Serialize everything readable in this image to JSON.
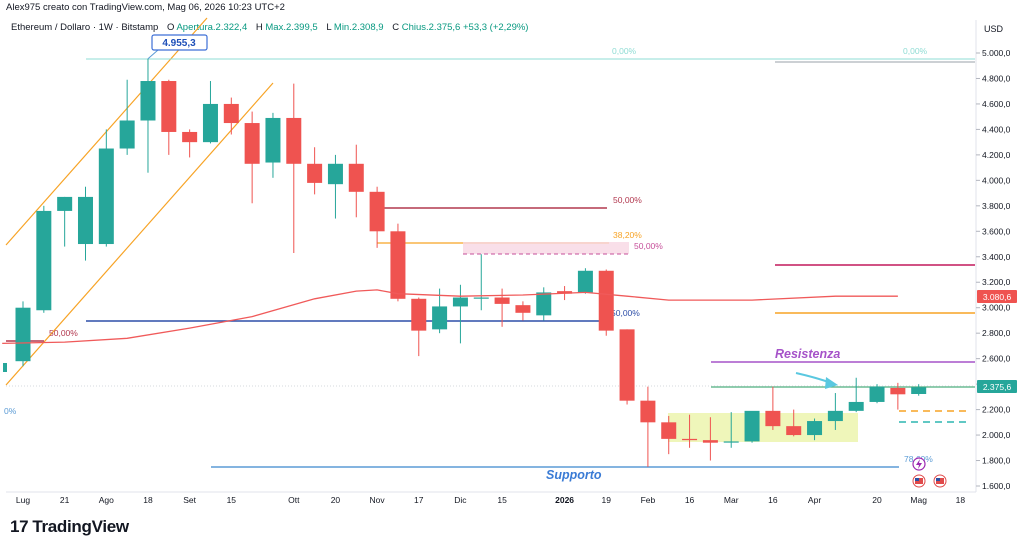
{
  "header": {
    "author_line": "Alex975 creato con TradingView.com, Mag 06, 2026 10:23 UTC+2",
    "symbol": "Ethereum / Dollaro · 1W · Bitstamp",
    "ohlc": {
      "open_label": "O",
      "open": "Apertura.2.322,4",
      "high_label": "H",
      "high": "Max.2.399,5",
      "low_label": "L",
      "low": "Min.2.308,9",
      "close_label": "C",
      "close": "Chius.2.375,6",
      "change": "+53,3 (+2,29%)"
    }
  },
  "brand": {
    "logo_text": "TradingView",
    "logo_mark": "17"
  },
  "colors": {
    "up": "#26a69a",
    "down": "#ef5350",
    "ma": "#f05a5a",
    "orange": "#f7a325",
    "purple": "#a653c9",
    "blue_line": "#2d4ea8",
    "support": "#5b9bd5",
    "green_line": "#4caf7d",
    "crimson": "#c2185b"
  },
  "chart_data": {
    "type": "candlestick",
    "symbol": "Ethereum / Dollaro",
    "timeframe": "1W",
    "currency": "USD",
    "y_ticks": [
      "5.000,0",
      "4.800,0",
      "4.600,0",
      "4.400,0",
      "4.200,0",
      "4.000,0",
      "3.800,0",
      "3.600,0",
      "3.400,0",
      "3.200,0",
      "3.000,0",
      "2.800,0",
      "2.600,0",
      "2.400,0",
      "2.200,0",
      "2.000,0",
      "1.800,0",
      "1.600,0"
    ],
    "ylim": [
      1550,
      5220
    ],
    "x_ticks": [
      "Lug",
      "21",
      "Ago",
      "18",
      "Set",
      "15",
      "Ott",
      "20",
      "Nov",
      "17",
      "Dic",
      "15",
      "2026",
      "19",
      "Feb",
      "16",
      "Mar",
      "16",
      "Apr",
      "20",
      "Mag",
      "18"
    ],
    "candles": [
      {
        "o": 2580,
        "h": 3050,
        "l": 2540,
        "c": 3000
      },
      {
        "o": 2980,
        "h": 3800,
        "l": 2960,
        "c": 3760
      },
      {
        "o": 3760,
        "h": 3870,
        "l": 3480,
        "c": 3870
      },
      {
        "o": 3500,
        "h": 3950,
        "l": 3370,
        "c": 3870
      },
      {
        "o": 3500,
        "h": 4400,
        "l": 3480,
        "c": 4250
      },
      {
        "o": 4250,
        "h": 4790,
        "l": 4200,
        "c": 4470
      },
      {
        "o": 4470,
        "h": 4955,
        "l": 4060,
        "c": 4780
      },
      {
        "o": 4780,
        "h": 4790,
        "l": 4200,
        "c": 4380
      },
      {
        "o": 4380,
        "h": 4400,
        "l": 4180,
        "c": 4300
      },
      {
        "o": 4300,
        "h": 4780,
        "l": 4290,
        "c": 4600
      },
      {
        "o": 4600,
        "h": 4650,
        "l": 4360,
        "c": 4450
      },
      {
        "o": 4450,
        "h": 4540,
        "l": 3820,
        "c": 4130
      },
      {
        "o": 4140,
        "h": 4530,
        "l": 4020,
        "c": 4490
      },
      {
        "o": 4490,
        "h": 4760,
        "l": 3430,
        "c": 4130
      },
      {
        "o": 4130,
        "h": 4260,
        "l": 3890,
        "c": 3980
      },
      {
        "o": 3970,
        "h": 4200,
        "l": 3700,
        "c": 4130
      },
      {
        "o": 4130,
        "h": 4280,
        "l": 3710,
        "c": 3910
      },
      {
        "o": 3910,
        "h": 3950,
        "l": 3470,
        "c": 3600
      },
      {
        "o": 3600,
        "h": 3660,
        "l": 3050,
        "c": 3070
      },
      {
        "o": 3070,
        "h": 3080,
        "l": 2620,
        "c": 2820
      },
      {
        "o": 2830,
        "h": 3150,
        "l": 2800,
        "c": 3010
      },
      {
        "o": 3010,
        "h": 3180,
        "l": 2720,
        "c": 3080
      },
      {
        "o": 3080,
        "h": 3420,
        "l": 2980,
        "c": 3080
      },
      {
        "o": 3080,
        "h": 3150,
        "l": 2850,
        "c": 3030
      },
      {
        "o": 3020,
        "h": 3050,
        "l": 2900,
        "c": 2960
      },
      {
        "o": 2940,
        "h": 3160,
        "l": 2900,
        "c": 3120
      },
      {
        "o": 3130,
        "h": 3170,
        "l": 3060,
        "c": 3110
      },
      {
        "o": 3120,
        "h": 3310,
        "l": 3110,
        "c": 3290
      },
      {
        "o": 3290,
        "h": 3300,
        "l": 2780,
        "c": 2820
      },
      {
        "o": 2830,
        "h": 2830,
        "l": 2240,
        "c": 2270
      },
      {
        "o": 2270,
        "h": 2380,
        "l": 1750,
        "c": 2100
      },
      {
        "o": 2100,
        "h": 2150,
        "l": 1850,
        "c": 1970
      },
      {
        "o": 1970,
        "h": 2160,
        "l": 1900,
        "c": 1960
      },
      {
        "o": 1960,
        "h": 2140,
        "l": 1800,
        "c": 1940
      },
      {
        "o": 1950,
        "h": 2180,
        "l": 1900,
        "c": 1950
      },
      {
        "o": 1950,
        "h": 2180,
        "l": 1940,
        "c": 2190
      },
      {
        "o": 2190,
        "h": 2380,
        "l": 2040,
        "c": 2070
      },
      {
        "o": 2070,
        "h": 2200,
        "l": 1990,
        "c": 2000
      },
      {
        "o": 2000,
        "h": 2130,
        "l": 1960,
        "c": 2110
      },
      {
        "o": 2110,
        "h": 2330,
        "l": 2040,
        "c": 2190
      },
      {
        "o": 2190,
        "h": 2450,
        "l": 2180,
        "c": 2260
      },
      {
        "o": 2260,
        "h": 2400,
        "l": 2250,
        "c": 2380
      },
      {
        "o": 2370,
        "h": 2410,
        "l": 2200,
        "c": 2320
      },
      {
        "o": 2322.4,
        "h": 2399.5,
        "l": 2308.9,
        "c": 2375.6
      }
    ],
    "moving_average": [
      {
        "i": -1,
        "v": 2720
      },
      {
        "i": 2,
        "v": 2730
      },
      {
        "i": 5,
        "v": 2760
      },
      {
        "i": 8,
        "v": 2840
      },
      {
        "i": 11,
        "v": 2930
      },
      {
        "i": 14,
        "v": 3070
      },
      {
        "i": 16,
        "v": 3130
      },
      {
        "i": 17,
        "v": 3140
      },
      {
        "i": 18,
        "v": 3110
      },
      {
        "i": 21,
        "v": 3090
      },
      {
        "i": 24,
        "v": 3100
      },
      {
        "i": 27,
        "v": 3120
      },
      {
        "i": 29,
        "v": 3090
      },
      {
        "i": 31,
        "v": 3060
      },
      {
        "i": 35,
        "v": 3060
      },
      {
        "i": 39,
        "v": 3090
      },
      {
        "i": 42,
        "v": 3090
      }
    ],
    "annotations": {
      "ath_callout": "4.955,3",
      "fib_top_left": "0,00%",
      "fib_top_right": "0,00%",
      "fib_50_upper": "50,00%",
      "fib_38": "38,20%",
      "fib_50_mid": "50,00%",
      "fib_50_blue": "50,00%",
      "fib_50_left": "50,00%",
      "fib_78": "78,60%",
      "fib_edge": "0%",
      "resistance": "Resistenza",
      "support": "Supporto",
      "price_tag_ma": "3.080,6",
      "price_tag_last": "2.375,6"
    }
  }
}
